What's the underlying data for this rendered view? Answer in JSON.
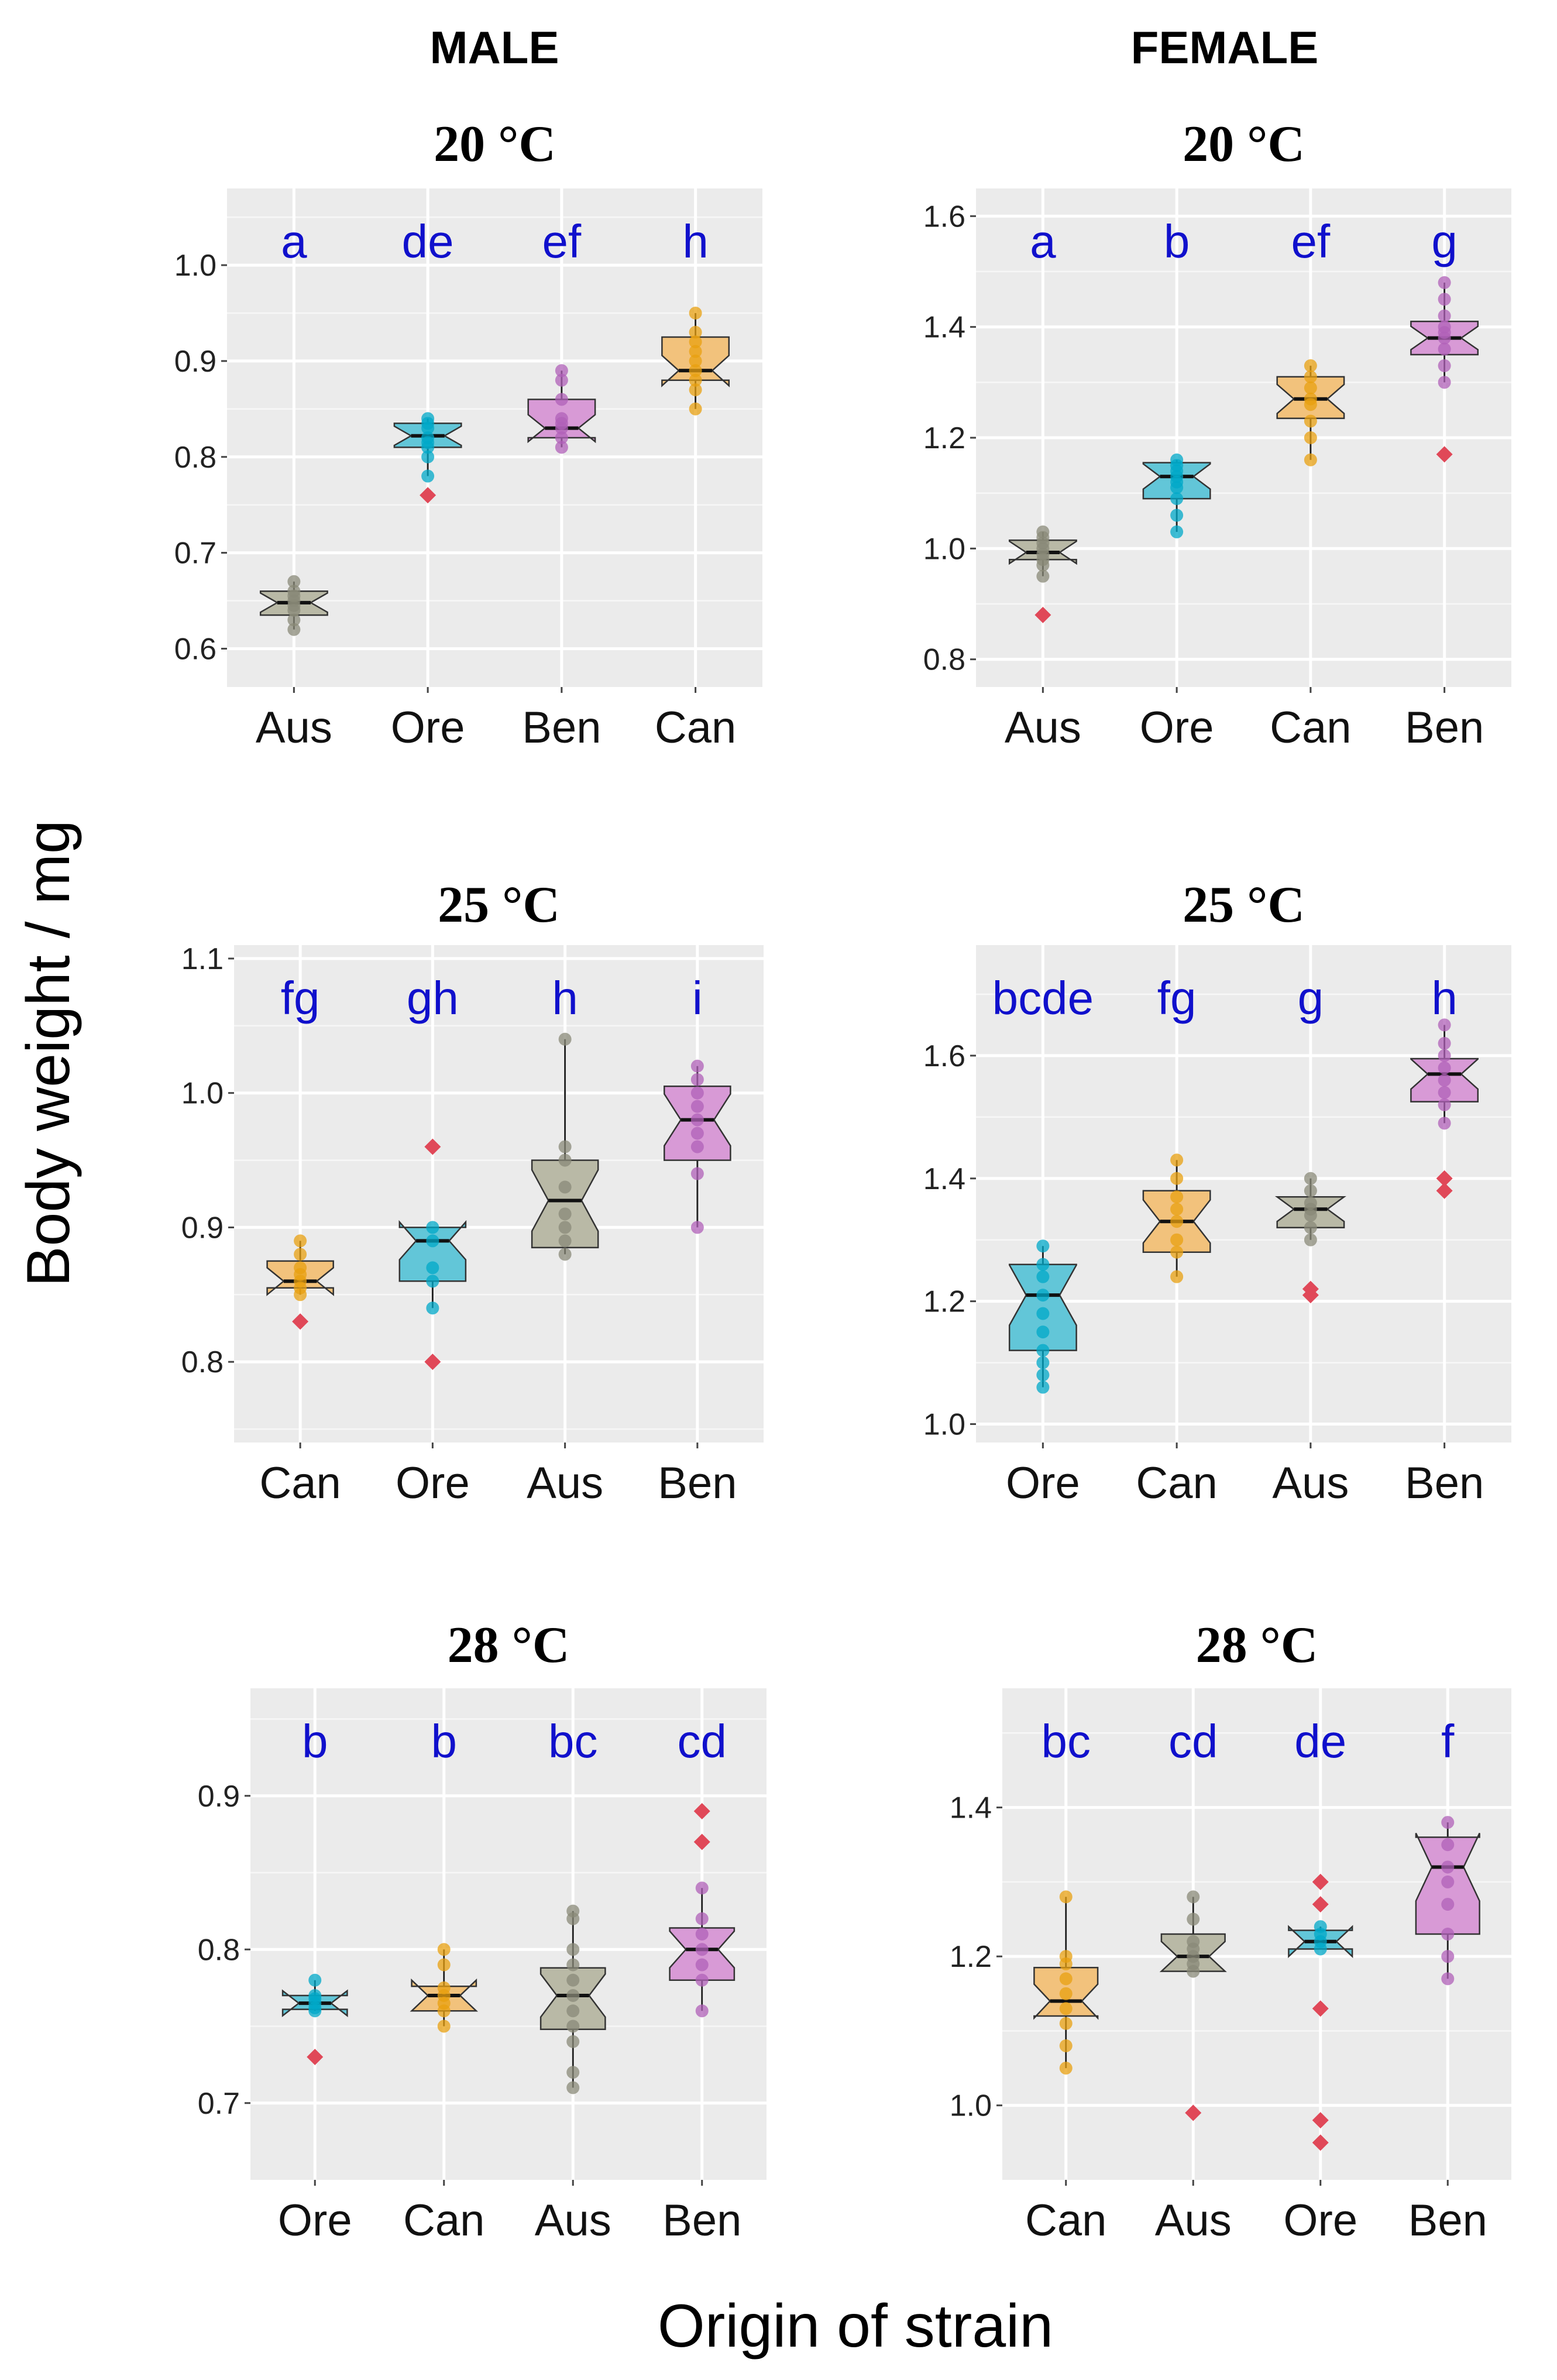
{
  "headers": {
    "male": "MALE",
    "female": "FEMALE"
  },
  "ylabel": "Body weight / mg",
  "xlabel": "Origin  of strain",
  "colors": {
    "Aus": "#b9b9a6",
    "Ore": "#62c6d8",
    "Ben": "#d89ad6",
    "Can": "#f2c27c",
    "point_Aus": "#8a8a78",
    "point_Ore": "#00a8c8",
    "point_Ben": "#b060b8",
    "point_Can": "#e8a010",
    "outlier": "#e04858",
    "letters": "#1010cc",
    "panel": "#ebebeb"
  },
  "chart_data": [
    {
      "type": "box",
      "sex": "MALE",
      "title": "20 °C",
      "yticks": [
        0.6,
        0.7,
        0.8,
        0.9,
        1.0
      ],
      "ylim": [
        0.56,
        1.08
      ],
      "categories": [
        "Aus",
        "Ore",
        "Ben",
        "Can"
      ],
      "letters": [
        "a",
        "de",
        "ef",
        "h"
      ],
      "boxes": [
        {
          "q1": 0.635,
          "median": 0.648,
          "q3": 0.66,
          "wlo": 0.62,
          "whi": 0.67,
          "points": [
            0.62,
            0.63,
            0.64,
            0.645,
            0.65,
            0.655,
            0.66,
            0.67
          ],
          "outliers": []
        },
        {
          "q1": 0.81,
          "median": 0.822,
          "q3": 0.835,
          "wlo": 0.78,
          "whi": 0.84,
          "points": [
            0.78,
            0.8,
            0.81,
            0.815,
            0.82,
            0.83,
            0.835,
            0.84
          ],
          "outliers": [
            0.76
          ]
        },
        {
          "q1": 0.82,
          "median": 0.83,
          "q3": 0.86,
          "wlo": 0.81,
          "whi": 0.89,
          "points": [
            0.81,
            0.82,
            0.83,
            0.835,
            0.84,
            0.86,
            0.88,
            0.89
          ],
          "outliers": []
        },
        {
          "q1": 0.88,
          "median": 0.89,
          "q3": 0.925,
          "wlo": 0.85,
          "whi": 0.95,
          "points": [
            0.85,
            0.87,
            0.88,
            0.89,
            0.9,
            0.91,
            0.92,
            0.93,
            0.95
          ],
          "outliers": []
        }
      ]
    },
    {
      "type": "box",
      "sex": "FEMALE",
      "title": "20 °C",
      "yticks": [
        0.8,
        1.0,
        1.2,
        1.4,
        1.6
      ],
      "ylim": [
        0.75,
        1.65
      ],
      "categories": [
        "Aus",
        "Ore",
        "Can",
        "Ben"
      ],
      "letters": [
        "a",
        "b",
        "ef",
        "g"
      ],
      "boxes": [
        {
          "q1": 0.98,
          "median": 0.993,
          "q3": 1.015,
          "wlo": 0.95,
          "whi": 1.03,
          "points": [
            0.95,
            0.97,
            0.98,
            0.99,
            1.0,
            1.01,
            1.02,
            1.03
          ],
          "outliers": [
            0.88
          ]
        },
        {
          "q1": 1.09,
          "median": 1.13,
          "q3": 1.155,
          "wlo": 1.03,
          "whi": 1.16,
          "points": [
            1.03,
            1.06,
            1.09,
            1.11,
            1.12,
            1.13,
            1.14,
            1.15,
            1.16
          ],
          "outliers": []
        },
        {
          "q1": 1.235,
          "median": 1.27,
          "q3": 1.31,
          "wlo": 1.16,
          "whi": 1.33,
          "points": [
            1.16,
            1.2,
            1.23,
            1.26,
            1.27,
            1.29,
            1.31,
            1.33
          ],
          "outliers": []
        },
        {
          "q1": 1.35,
          "median": 1.38,
          "q3": 1.41,
          "wlo": 1.3,
          "whi": 1.48,
          "points": [
            1.3,
            1.33,
            1.36,
            1.38,
            1.39,
            1.4,
            1.42,
            1.45,
            1.48
          ],
          "outliers": [
            1.17
          ]
        }
      ]
    },
    {
      "type": "box",
      "sex": "MALE",
      "title": "25 °C",
      "yticks": [
        0.8,
        0.9,
        1.0,
        1.1
      ],
      "ylim": [
        0.74,
        1.11
      ],
      "categories": [
        "Can",
        "Ore",
        "Aus",
        "Ben"
      ],
      "letters": [
        "fg",
        "gh",
        "h",
        "i"
      ],
      "boxes": [
        {
          "q1": 0.855,
          "median": 0.86,
          "q3": 0.875,
          "wlo": 0.85,
          "whi": 0.89,
          "points": [
            0.85,
            0.855,
            0.86,
            0.865,
            0.87,
            0.88,
            0.89
          ],
          "outliers": [
            0.83
          ]
        },
        {
          "q1": 0.86,
          "median": 0.89,
          "q3": 0.9,
          "wlo": 0.84,
          "whi": 0.9,
          "points": [
            0.84,
            0.86,
            0.87,
            0.89,
            0.9
          ],
          "outliers": [
            0.96,
            0.8
          ]
        },
        {
          "q1": 0.885,
          "median": 0.92,
          "q3": 0.95,
          "wlo": 0.88,
          "whi": 1.04,
          "points": [
            0.88,
            0.89,
            0.9,
            0.91,
            0.93,
            0.95,
            0.96,
            1.04
          ],
          "outliers": []
        },
        {
          "q1": 0.95,
          "median": 0.98,
          "q3": 1.005,
          "wlo": 0.9,
          "whi": 1.02,
          "points": [
            0.9,
            0.94,
            0.96,
            0.97,
            0.98,
            0.99,
            1.0,
            1.01,
            1.02
          ],
          "outliers": []
        }
      ]
    },
    {
      "type": "box",
      "sex": "FEMALE",
      "title": "25 °C",
      "yticks": [
        1.0,
        1.2,
        1.4,
        1.6
      ],
      "ylim": [
        0.97,
        1.78
      ],
      "categories": [
        "Ore",
        "Can",
        "Aus",
        "Ben"
      ],
      "letters": [
        "bcde",
        "fg",
        "g",
        "h"
      ],
      "boxes": [
        {
          "q1": 1.12,
          "median": 1.21,
          "q3": 1.26,
          "wlo": 1.06,
          "whi": 1.29,
          "points": [
            1.06,
            1.08,
            1.1,
            1.12,
            1.15,
            1.18,
            1.21,
            1.24,
            1.26,
            1.29
          ],
          "outliers": []
        },
        {
          "q1": 1.28,
          "median": 1.33,
          "q3": 1.38,
          "wlo": 1.24,
          "whi": 1.43,
          "points": [
            1.24,
            1.28,
            1.3,
            1.33,
            1.35,
            1.37,
            1.4,
            1.43
          ],
          "outliers": []
        },
        {
          "q1": 1.32,
          "median": 1.35,
          "q3": 1.37,
          "wlo": 1.3,
          "whi": 1.4,
          "points": [
            1.3,
            1.32,
            1.34,
            1.35,
            1.36,
            1.38,
            1.4
          ],
          "outliers": [
            1.22,
            1.21
          ]
        },
        {
          "q1": 1.525,
          "median": 1.57,
          "q3": 1.595,
          "wlo": 1.49,
          "whi": 1.65,
          "points": [
            1.49,
            1.52,
            1.54,
            1.56,
            1.58,
            1.6,
            1.62,
            1.65
          ],
          "outliers": [
            1.4,
            1.38
          ]
        }
      ]
    },
    {
      "type": "box",
      "sex": "MALE",
      "title": "28 °C",
      "yticks": [
        0.7,
        0.8,
        0.9
      ],
      "ylim": [
        0.65,
        0.97
      ],
      "categories": [
        "Ore",
        "Can",
        "Aus",
        "Ben"
      ],
      "letters": [
        "b",
        "b",
        "bc",
        "cd"
      ],
      "boxes": [
        {
          "q1": 0.761,
          "median": 0.765,
          "q3": 0.77,
          "wlo": 0.76,
          "whi": 0.78,
          "points": [
            0.76,
            0.762,
            0.765,
            0.768,
            0.77,
            0.78
          ],
          "outliers": [
            0.73
          ]
        },
        {
          "q1": 0.76,
          "median": 0.77,
          "q3": 0.776,
          "wlo": 0.75,
          "whi": 0.8,
          "points": [
            0.75,
            0.76,
            0.765,
            0.77,
            0.775,
            0.79,
            0.8
          ],
          "outliers": []
        },
        {
          "q1": 0.748,
          "median": 0.77,
          "q3": 0.788,
          "wlo": 0.71,
          "whi": 0.825,
          "points": [
            0.71,
            0.72,
            0.74,
            0.75,
            0.76,
            0.77,
            0.78,
            0.79,
            0.8,
            0.82,
            0.825
          ],
          "outliers": []
        },
        {
          "q1": 0.78,
          "median": 0.8,
          "q3": 0.814,
          "wlo": 0.76,
          "whi": 0.84,
          "points": [
            0.76,
            0.78,
            0.79,
            0.8,
            0.81,
            0.82,
            0.84
          ],
          "outliers": [
            0.89,
            0.87
          ]
        }
      ]
    },
    {
      "type": "box",
      "sex": "FEMALE",
      "title": "28 °C",
      "yticks": [
        1.0,
        1.2,
        1.4
      ],
      "ylim": [
        0.9,
        1.56
      ],
      "categories": [
        "Can",
        "Aus",
        "Ore",
        "Ben"
      ],
      "letters": [
        "bc",
        "cd",
        "de",
        "f"
      ],
      "boxes": [
        {
          "q1": 1.12,
          "median": 1.14,
          "q3": 1.185,
          "wlo": 1.05,
          "whi": 1.28,
          "points": [
            1.05,
            1.08,
            1.11,
            1.13,
            1.15,
            1.17,
            1.19,
            1.2,
            1.28
          ],
          "outliers": []
        },
        {
          "q1": 1.18,
          "median": 1.2,
          "q3": 1.23,
          "wlo": 1.18,
          "whi": 1.28,
          "points": [
            1.18,
            1.19,
            1.2,
            1.21,
            1.22,
            1.25,
            1.28
          ],
          "outliers": [
            0.99
          ]
        },
        {
          "q1": 1.21,
          "median": 1.22,
          "q3": 1.235,
          "wlo": 1.21,
          "whi": 1.24,
          "points": [
            1.21,
            1.22,
            1.23,
            1.24
          ],
          "outliers": [
            1.3,
            1.27,
            1.13,
            0.98,
            0.95
          ]
        },
        {
          "q1": 1.23,
          "median": 1.32,
          "q3": 1.36,
          "wlo": 1.17,
          "whi": 1.38,
          "points": [
            1.17,
            1.2,
            1.23,
            1.27,
            1.3,
            1.32,
            1.35,
            1.38
          ],
          "outliers": []
        }
      ]
    }
  ]
}
